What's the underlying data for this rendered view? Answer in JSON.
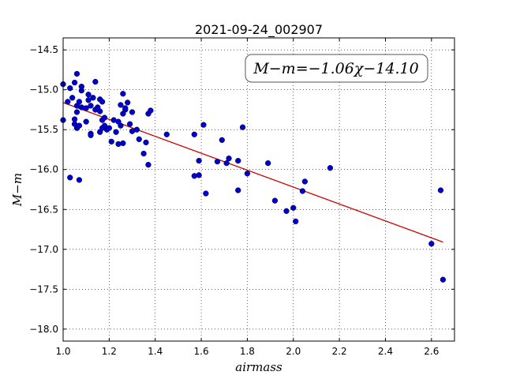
{
  "chart_data": {
    "type": "scatter",
    "title": "2021-09-24_002907",
    "xlabel": "airmass",
    "ylabel": "M−m",
    "xlim": [
      1.0,
      2.7
    ],
    "ylim": [
      -18.15,
      -14.35
    ],
    "x_ticks": [
      1.0,
      1.2,
      1.4,
      1.6,
      1.8,
      2.0,
      2.2,
      2.4,
      2.6
    ],
    "x_tick_labels": [
      "1.0",
      "1.2",
      "1.4",
      "1.6",
      "1.8",
      "2.0",
      "2.2",
      "2.4",
      "2.6"
    ],
    "y_ticks": [
      -14.5,
      -15.0,
      -15.5,
      -16.0,
      -16.5,
      -17.0,
      -17.5,
      -18.0
    ],
    "y_tick_labels": [
      "−14.5",
      "−15.0",
      "−15.5",
      "−16.0",
      "−16.5",
      "−17.0",
      "−17.5",
      "−18.0"
    ],
    "grid": true,
    "annotation": "M−m=−1.06χ−14.10",
    "annotation_position": "top-right",
    "fit": {
      "slope": -1.06,
      "intercept": -14.1,
      "x_range": [
        1.0,
        2.65
      ],
      "color": "#cc0000"
    },
    "marker_color": "#0000cc",
    "points": [
      [
        1.0,
        -14.93
      ],
      [
        1.0,
        -15.38
      ],
      [
        1.02,
        -15.15
      ],
      [
        1.03,
        -14.98
      ],
      [
        1.03,
        -16.1
      ],
      [
        1.04,
        -15.1
      ],
      [
        1.05,
        -15.37
      ],
      [
        1.05,
        -15.43
      ],
      [
        1.05,
        -14.91
      ],
      [
        1.06,
        -14.8
      ],
      [
        1.06,
        -15.2
      ],
      [
        1.06,
        -15.28
      ],
      [
        1.06,
        -15.48
      ],
      [
        1.07,
        -15.45
      ],
      [
        1.07,
        -16.13
      ],
      [
        1.07,
        -15.15
      ],
      [
        1.08,
        -15.22
      ],
      [
        1.08,
        -15.01
      ],
      [
        1.08,
        -14.96
      ],
      [
        1.1,
        -15.23
      ],
      [
        1.1,
        -15.4
      ],
      [
        1.11,
        -15.06
      ],
      [
        1.11,
        -15.13
      ],
      [
        1.12,
        -15.55
      ],
      [
        1.12,
        -15.57
      ],
      [
        1.12,
        -15.2
      ],
      [
        1.13,
        -15.1
      ],
      [
        1.14,
        -15.25
      ],
      [
        1.14,
        -14.9
      ],
      [
        1.15,
        -15.22
      ],
      [
        1.16,
        -15.12
      ],
      [
        1.16,
        -15.27
      ],
      [
        1.16,
        -15.53
      ],
      [
        1.17,
        -15.15
      ],
      [
        1.17,
        -15.38
      ],
      [
        1.17,
        -15.48
      ],
      [
        1.18,
        -15.45
      ],
      [
        1.18,
        -15.35
      ],
      [
        1.19,
        -15.5
      ],
      [
        1.2,
        -15.48
      ],
      [
        1.21,
        -15.65
      ],
      [
        1.22,
        -15.38
      ],
      [
        1.23,
        -15.53
      ],
      [
        1.24,
        -15.4
      ],
      [
        1.24,
        -15.68
      ],
      [
        1.25,
        -15.45
      ],
      [
        1.25,
        -15.19
      ],
      [
        1.26,
        -15.67
      ],
      [
        1.26,
        -15.05
      ],
      [
        1.26,
        -15.3
      ],
      [
        1.27,
        -15.25
      ],
      [
        1.27,
        -15.23
      ],
      [
        1.28,
        -15.16
      ],
      [
        1.29,
        -15.43
      ],
      [
        1.3,
        -15.52
      ],
      [
        1.3,
        -15.28
      ],
      [
        1.32,
        -15.5
      ],
      [
        1.33,
        -15.62
      ],
      [
        1.35,
        -15.8
      ],
      [
        1.36,
        -15.66
      ],
      [
        1.37,
        -15.94
      ],
      [
        1.37,
        -15.3
      ],
      [
        1.38,
        -15.26
      ],
      [
        1.45,
        -15.56
      ],
      [
        1.57,
        -15.56
      ],
      [
        1.57,
        -16.08
      ],
      [
        1.59,
        -15.89
      ],
      [
        1.59,
        -16.07
      ],
      [
        1.61,
        -15.44
      ],
      [
        1.62,
        -16.3
      ],
      [
        1.67,
        -15.9
      ],
      [
        1.69,
        -15.63
      ],
      [
        1.71,
        -15.92
      ],
      [
        1.72,
        -15.86
      ],
      [
        1.76,
        -15.89
      ],
      [
        1.76,
        -16.26
      ],
      [
        1.78,
        -15.47
      ],
      [
        1.8,
        -16.05
      ],
      [
        1.89,
        -15.92
      ],
      [
        1.92,
        -16.39
      ],
      [
        1.97,
        -16.52
      ],
      [
        2.0,
        -16.48
      ],
      [
        2.01,
        -16.65
      ],
      [
        2.04,
        -16.27
      ],
      [
        2.05,
        -16.15
      ],
      [
        2.16,
        -15.98
      ],
      [
        2.6,
        -16.93
      ],
      [
        2.64,
        -16.26
      ],
      [
        2.65,
        -17.38
      ]
    ]
  }
}
